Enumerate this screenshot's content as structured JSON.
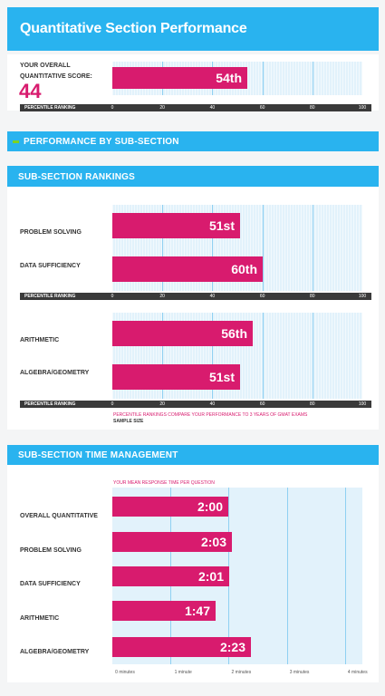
{
  "header": {
    "title": "Quantitative Section Performance"
  },
  "overall": {
    "label_line1": "YOUR OVERALL",
    "label_line2": "QUANTITATIVE SCORE:",
    "score": "44",
    "percentile_label": "54th"
  },
  "performance_band": {
    "title": "PERFORMANCE BY SUB-SECTION"
  },
  "rankings_band": {
    "title": "SUB-SECTION RANKINGS"
  },
  "time_band": {
    "title": "SUB-SECTION TIME MANAGEMENT"
  },
  "axis": {
    "name": "PERCENTILE RANKING",
    "ticks": [
      "0",
      "20",
      "40",
      "60",
      "80",
      "100"
    ]
  },
  "notes": {
    "compare": "PERCENTILE RANKINGS COMPARE YOUR PERFORMANCE TO 3 YEARS OF GMAT EXAMS",
    "sample": "SAMPLE SIZE"
  },
  "time": {
    "caption": "YOUR MEAN RESPONSE TIME PER QUESTION",
    "ticks": [
      "0 minutes",
      "1 minute",
      "2 minutes",
      "3 minutes",
      "4 minutes"
    ]
  },
  "colors": {
    "accent": "#d81b6e",
    "header": "#29b3ef",
    "plot_bg": "#e2f2fb",
    "axis_bar": "#3a3a3a"
  },
  "chart_data": [
    {
      "type": "bar",
      "orientation": "horizontal",
      "categories": [
        "Overall Quantitative"
      ],
      "values": [
        54
      ],
      "labels": [
        "54th"
      ],
      "xlim": [
        0,
        100
      ]
    },
    {
      "type": "bar",
      "orientation": "horizontal",
      "categories": [
        "PROBLEM SOLVING",
        "DATA SUFFICIENCY"
      ],
      "values": [
        51,
        60
      ],
      "labels": [
        "51st",
        "60th"
      ],
      "xlim": [
        0,
        100
      ]
    },
    {
      "type": "bar",
      "orientation": "horizontal",
      "categories": [
        "ARITHMETIC",
        "ALGEBRA/GEOMETRY"
      ],
      "values": [
        56,
        51
      ],
      "labels": [
        "56th",
        "51st"
      ],
      "xlim": [
        0,
        100
      ]
    },
    {
      "type": "bar",
      "orientation": "horizontal",
      "title": "YOUR MEAN RESPONSE TIME PER QUESTION",
      "categories": [
        "OVERALL QUANTITATIVE",
        "PROBLEM SOLVING",
        "DATA SUFFICIENCY",
        "ARITHMETIC",
        "ALGEBRA/GEOMETRY"
      ],
      "values": [
        2.0,
        2.05,
        2.017,
        1.783,
        2.383
      ],
      "labels": [
        "2:00",
        "2:03",
        "2:01",
        "1:47",
        "2:23"
      ],
      "xlim": [
        0,
        4.3
      ],
      "unit": "minutes"
    }
  ]
}
